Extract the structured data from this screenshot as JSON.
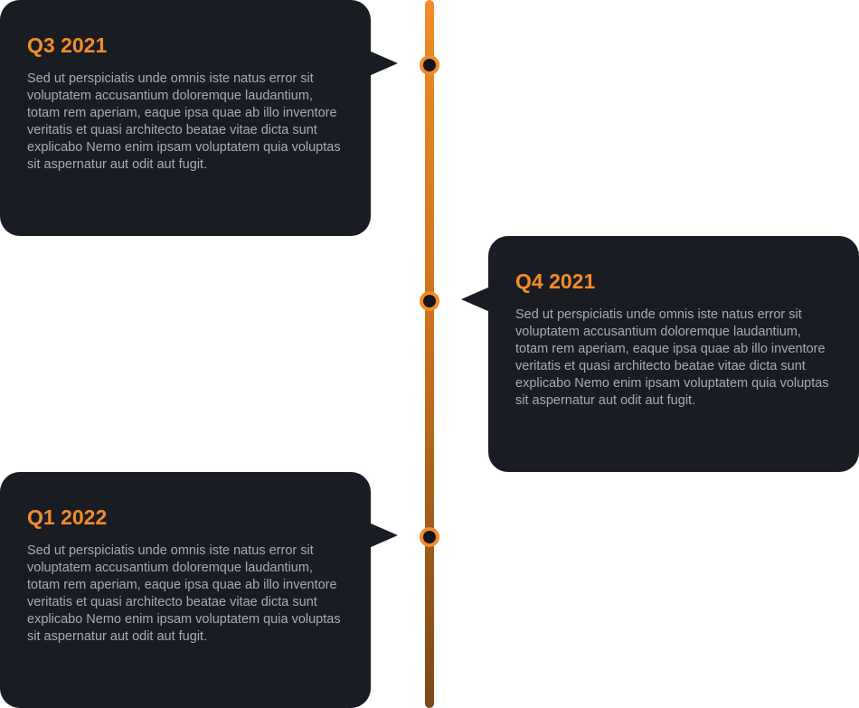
{
  "timeline": {
    "items": [
      {
        "title": "Q3 2021",
        "text": "Sed ut perspiciatis unde omnis iste natus error sit voluptatem accusantium doloremque laudantium, totam rem aperiam, eaque ipsa quae ab illo inventore veritatis et quasi architecto beatae vitae dicta sunt explicabo Nemo enim ipsam voluptatem quia voluptas sit aspernatur aut odit aut fugit.",
        "side": "left"
      },
      {
        "title": "Q4 2021",
        "text": "Sed ut perspiciatis unde omnis iste natus error sit voluptatem accusantium doloremque laudantium, totam rem aperiam, eaque ipsa quae ab illo inventore veritatis et quasi architecto beatae vitae dicta sunt explicabo Nemo enim ipsam voluptatem quia voluptas sit aspernatur aut odit aut fugit.",
        "side": "right"
      },
      {
        "title": "Q1 2022",
        "text": "Sed ut perspiciatis unde omnis iste natus error sit voluptatem accusantium doloremque laudantium, totam rem aperiam, eaque ipsa quae ab illo inventore veritatis et quasi architecto beatae vitae dicta sunt explicabo Nemo enim ipsam voluptatem quia voluptas sit aspernatur aut odit aut fugit.",
        "side": "left"
      }
    ]
  },
  "colors": {
    "accent": "#f28c28",
    "card_background": "#1a1c24",
    "body_text": "#a9abb2"
  }
}
